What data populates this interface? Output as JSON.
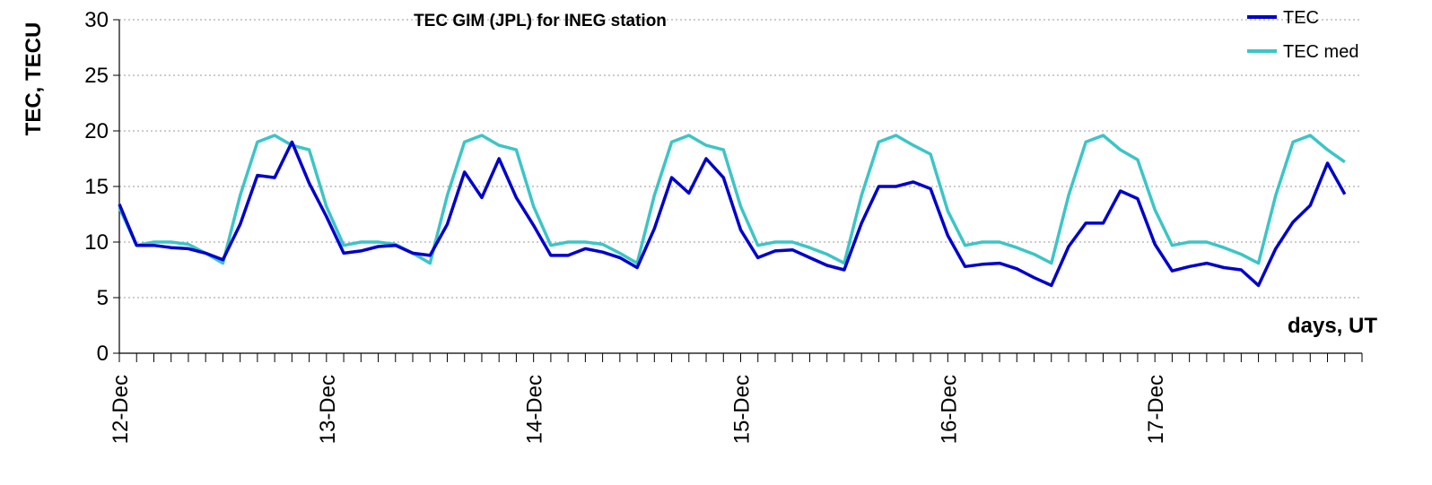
{
  "chart_data": {
    "type": "line",
    "title": "TEC GIM (JPL) for INEG station",
    "ylabel": "TEC, TECU",
    "xlabel": "days, UT",
    "ylim": [
      0,
      30
    ],
    "yticks": [
      "0",
      "5",
      "10",
      "15",
      "20",
      "25",
      "30"
    ],
    "x_date_labels": [
      "12-Dec",
      "13-Dec",
      "14-Dec",
      "15-Dec",
      "16-Dec",
      "17-Dec"
    ],
    "x_sample_interval_hours": 2,
    "x_start": "12-Dec 00:00",
    "grid": "horizontal dotted",
    "legend_position": "top-right",
    "series": [
      {
        "name": "TEC",
        "color": "#0000cc",
        "values": [
          13.4,
          9.7,
          9.7,
          9.5,
          9.4,
          9.0,
          8.4,
          11.6,
          16.0,
          15.8,
          19.0,
          15.3,
          12.3,
          9.0,
          9.2,
          9.6,
          9.7,
          9.0,
          8.8,
          11.6,
          16.3,
          14.0,
          17.5,
          14.0,
          11.5,
          8.8,
          8.8,
          9.4,
          9.1,
          8.6,
          7.7,
          11.2,
          15.8,
          14.4,
          17.5,
          15.8,
          11.1,
          8.6,
          9.2,
          9.3,
          8.6,
          7.9,
          7.5,
          11.7,
          15.0,
          15.0,
          15.4,
          14.8,
          10.6,
          7.8,
          8.0,
          8.1,
          7.6,
          6.8,
          6.1,
          9.6,
          11.7,
          11.7,
          14.6,
          13.9,
          9.8,
          7.4,
          7.8,
          8.1,
          7.7,
          7.5,
          6.1,
          9.4,
          11.8,
          13.3,
          17.1,
          14.3
        ]
      },
      {
        "name": "TEC med",
        "color": "#3cc5c5",
        "values": [
          13.1,
          9.7,
          10.0,
          10.0,
          9.8,
          9.0,
          8.1,
          14.2,
          19.0,
          19.6,
          18.7,
          18.3,
          13.2,
          9.7,
          10.0,
          10.0,
          9.8,
          9.0,
          8.1,
          14.2,
          19.0,
          19.6,
          18.7,
          18.3,
          13.2,
          9.7,
          10.0,
          10.0,
          9.8,
          9.0,
          8.1,
          14.2,
          19.0,
          19.6,
          18.7,
          18.3,
          13.2,
          9.7,
          10.0,
          10.0,
          9.5,
          8.9,
          8.1,
          14.2,
          19.0,
          19.6,
          18.7,
          17.9,
          12.8,
          9.7,
          10.0,
          10.0,
          9.5,
          8.9,
          8.1,
          14.2,
          19.0,
          19.6,
          18.3,
          17.4,
          12.9,
          9.7,
          10.0,
          10.0,
          9.5,
          8.9,
          8.1,
          14.2,
          19.0,
          19.6,
          18.3,
          17.2
        ]
      }
    ]
  }
}
